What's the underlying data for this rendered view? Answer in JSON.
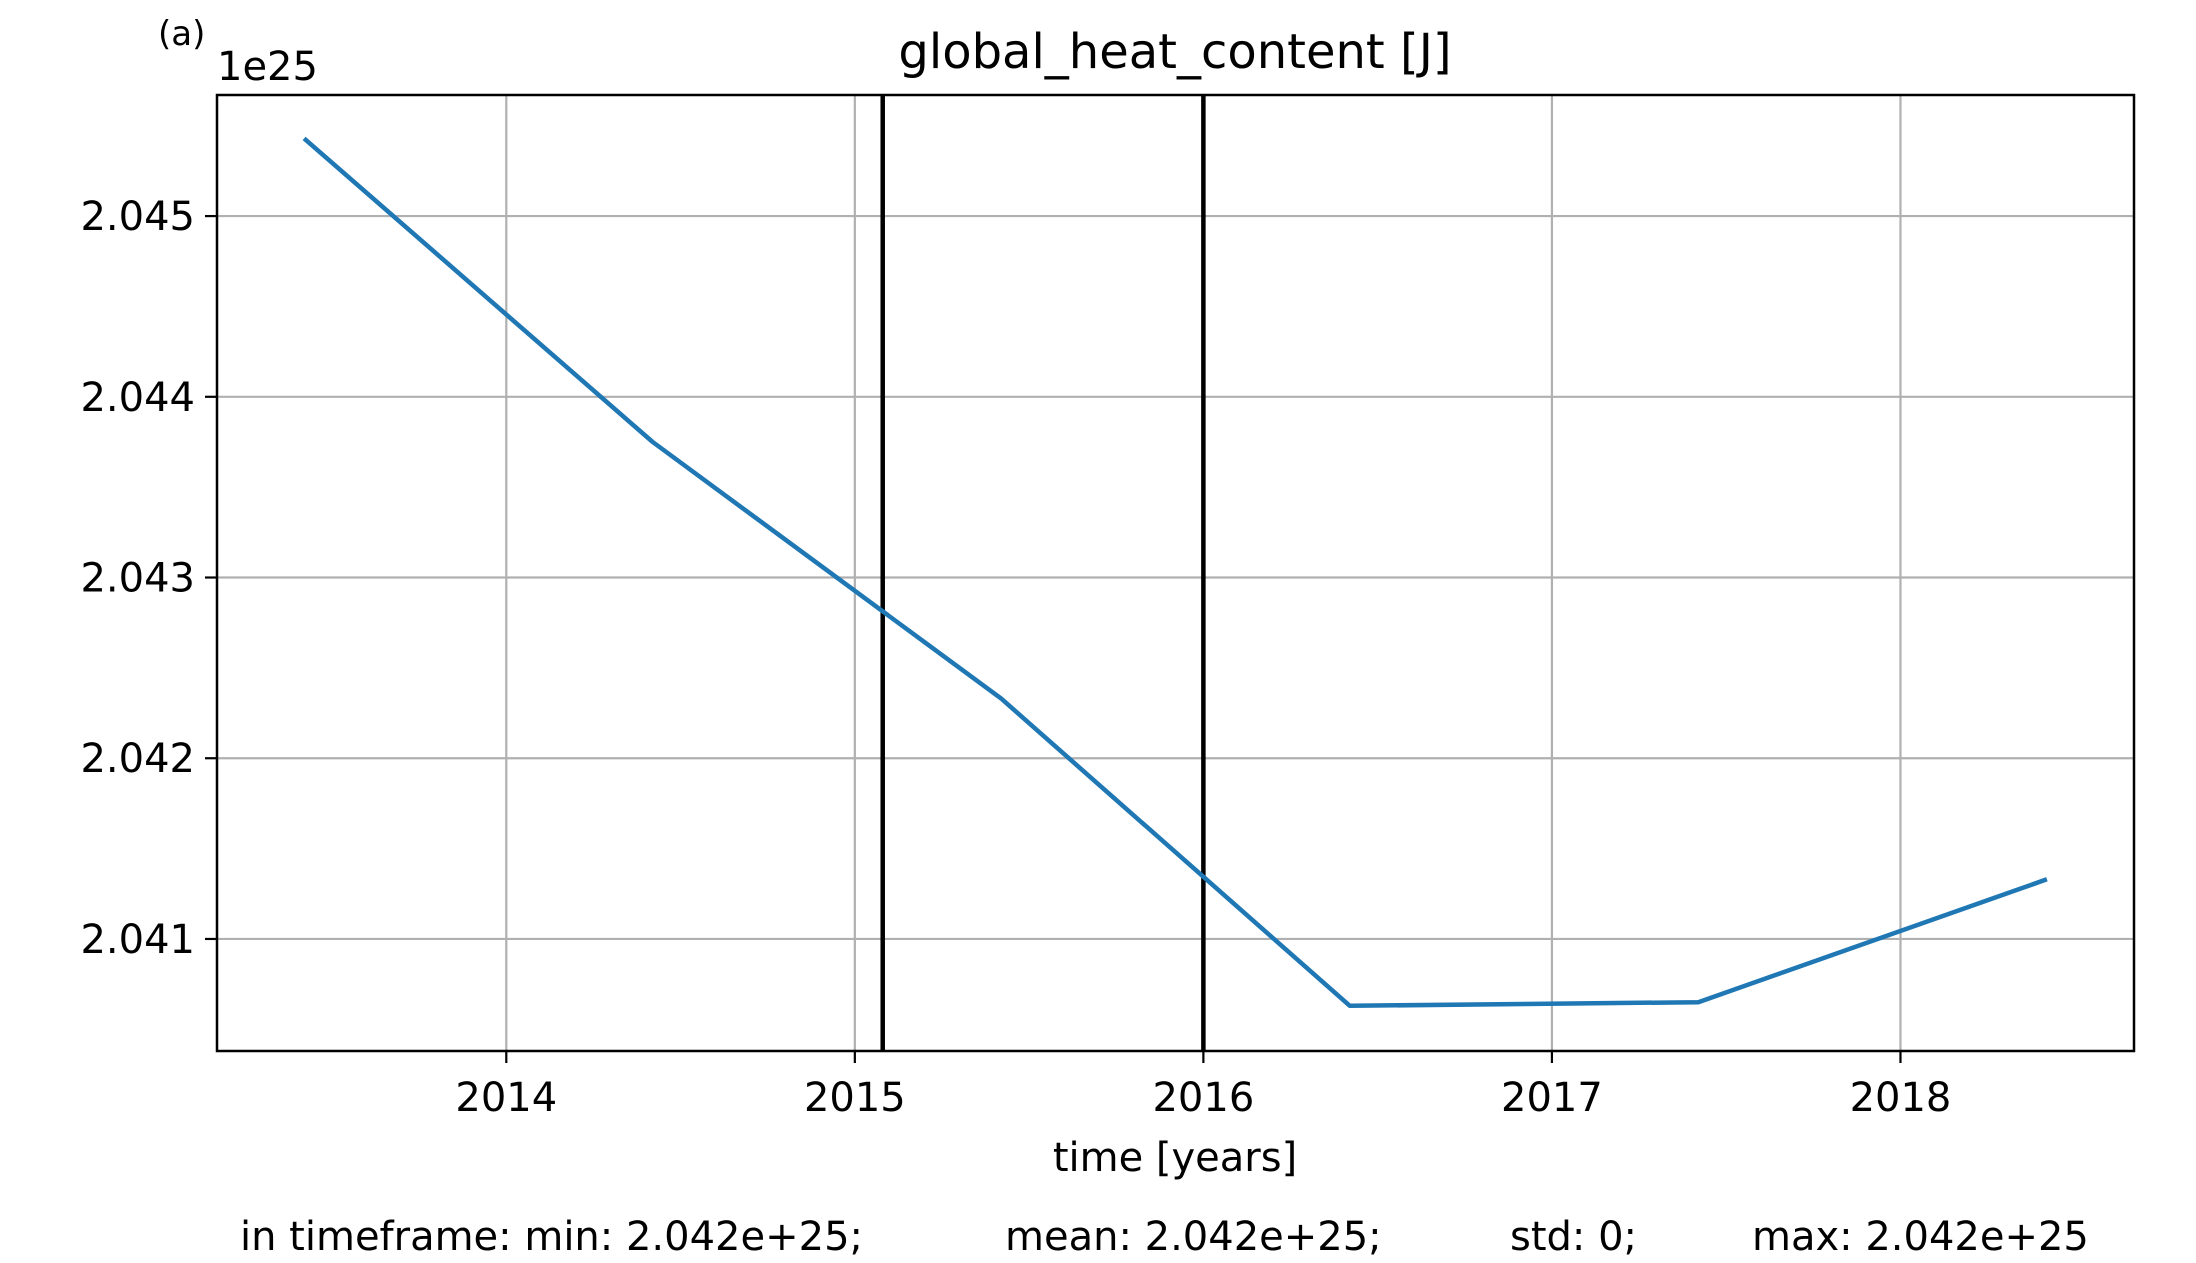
{
  "panel_label": "(a)",
  "chart_data": {
    "type": "line",
    "title": "global_heat_content [J]",
    "xlabel": "time [years]",
    "ylabel": "",
    "offset_text": "1e25",
    "y_scale_exponent": 25,
    "xlim": [
      2013.17,
      2018.67
    ],
    "ylim": [
      2.04038,
      2.04567
    ],
    "x_ticks": [
      2014,
      2015,
      2016,
      2017,
      2018
    ],
    "x_tick_labels": [
      "2014",
      "2015",
      "2016",
      "2017",
      "2018"
    ],
    "y_ticks": [
      2.041,
      2.042,
      2.043,
      2.044,
      2.045
    ],
    "y_tick_labels": [
      "2.041",
      "2.042",
      "2.043",
      "2.044",
      "2.045"
    ],
    "grid": true,
    "series": [
      {
        "color": "#1f77b4",
        "x": [
          2013.42,
          2014.42,
          2015.42,
          2016.42,
          2017.42,
          2018.42
        ],
        "y": [
          2.04543,
          2.04375,
          2.04233,
          2.04063,
          2.04065,
          2.04133
        ]
      }
    ],
    "vertical_lines": [
      {
        "x": 2015.08,
        "color": "#000000"
      },
      {
        "x": 2016.0,
        "color": "#000000"
      }
    ]
  },
  "stats": {
    "min": "in timeframe: min: 2.042e+25;",
    "mean": "mean: 2.042e+25;",
    "std": "std: 0;",
    "max": "max: 2.042e+25"
  }
}
